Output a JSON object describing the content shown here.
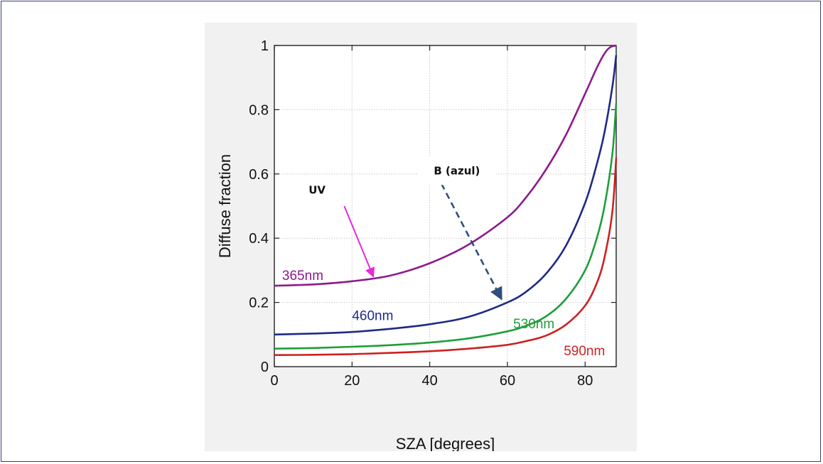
{
  "chart_data": {
    "type": "line",
    "title": "",
    "xlabel": "SZA [degrees]",
    "ylabel": "Diffuse fraction",
    "xlim": [
      0,
      88
    ],
    "ylim": [
      0,
      1
    ],
    "xticks": [
      0,
      20,
      40,
      60,
      80
    ],
    "yticks": [
      0,
      0.2,
      0.4,
      0.6,
      0.8,
      1
    ],
    "yticklabels": [
      "0",
      "0.2",
      "0.4",
      "0.6",
      "0.8",
      "1"
    ],
    "grid": true,
    "series": [
      {
        "name": "365nm",
        "color": "#8e1a8c",
        "points": [
          [
            0,
            0.252
          ],
          [
            10,
            0.256
          ],
          [
            20,
            0.266
          ],
          [
            30,
            0.284
          ],
          [
            40,
            0.322
          ],
          [
            50,
            0.38
          ],
          [
            60,
            0.465
          ],
          [
            65,
            0.53
          ],
          [
            70,
            0.615
          ],
          [
            75,
            0.72
          ],
          [
            80,
            0.85
          ],
          [
            83,
            0.93
          ],
          [
            85,
            0.975
          ],
          [
            86.5,
            0.995
          ],
          [
            88,
            1.0
          ]
        ]
      },
      {
        "name": "460nm",
        "color": "#1f2a85",
        "points": [
          [
            0,
            0.1
          ],
          [
            10,
            0.103
          ],
          [
            20,
            0.108
          ],
          [
            30,
            0.118
          ],
          [
            40,
            0.132
          ],
          [
            50,
            0.155
          ],
          [
            60,
            0.2
          ],
          [
            65,
            0.235
          ],
          [
            70,
            0.29
          ],
          [
            75,
            0.375
          ],
          [
            80,
            0.51
          ],
          [
            83,
            0.63
          ],
          [
            85,
            0.73
          ],
          [
            87,
            0.87
          ],
          [
            88,
            0.97
          ]
        ]
      },
      {
        "name": "530nm",
        "color": "#1e9e3a",
        "points": [
          [
            0,
            0.056
          ],
          [
            10,
            0.058
          ],
          [
            20,
            0.062
          ],
          [
            30,
            0.067
          ],
          [
            40,
            0.075
          ],
          [
            50,
            0.088
          ],
          [
            60,
            0.11
          ],
          [
            65,
            0.128
          ],
          [
            70,
            0.157
          ],
          [
            75,
            0.21
          ],
          [
            80,
            0.3
          ],
          [
            83,
            0.4
          ],
          [
            85,
            0.5
          ],
          [
            87,
            0.66
          ],
          [
            88,
            0.82
          ]
        ]
      },
      {
        "name": "590nm",
        "color": "#cc2222",
        "points": [
          [
            0,
            0.036
          ],
          [
            10,
            0.037
          ],
          [
            20,
            0.039
          ],
          [
            30,
            0.043
          ],
          [
            40,
            0.048
          ],
          [
            50,
            0.056
          ],
          [
            60,
            0.068
          ],
          [
            65,
            0.08
          ],
          [
            70,
            0.097
          ],
          [
            75,
            0.13
          ],
          [
            80,
            0.19
          ],
          [
            83,
            0.26
          ],
          [
            85,
            0.34
          ],
          [
            87,
            0.48
          ],
          [
            88,
            0.65
          ]
        ]
      }
    ],
    "series_labels": [
      {
        "text": "365nm",
        "color": "#8e1a8c",
        "x": 2,
        "y": 0.27
      },
      {
        "text": "460nm",
        "color": "#1f2a85",
        "x": 20,
        "y": 0.145
      },
      {
        "text": "530nm",
        "color": "#1e9e3a",
        "x": 61.5,
        "y": 0.12
      },
      {
        "text": "590nm",
        "color": "#cc2222",
        "x": 74.5,
        "y": 0.035
      }
    ],
    "annotations": [
      {
        "text": "UV",
        "box_color": "#ffffff",
        "arrow_color": "#e62ad6",
        "arrow_style": "solid",
        "label_at": [
          11,
          0.55
        ],
        "arrow_from": [
          18,
          0.5
        ],
        "arrow_to": [
          25.5,
          0.28
        ]
      },
      {
        "text": "B (azul)",
        "box_color": "#ffffff",
        "arrow_color": "#2f4f7a",
        "arrow_style": "dashed",
        "label_at": [
          47,
          0.61
        ],
        "arrow_from": [
          43,
          0.57
        ],
        "arrow_to": [
          58.5,
          0.21
        ]
      }
    ]
  }
}
